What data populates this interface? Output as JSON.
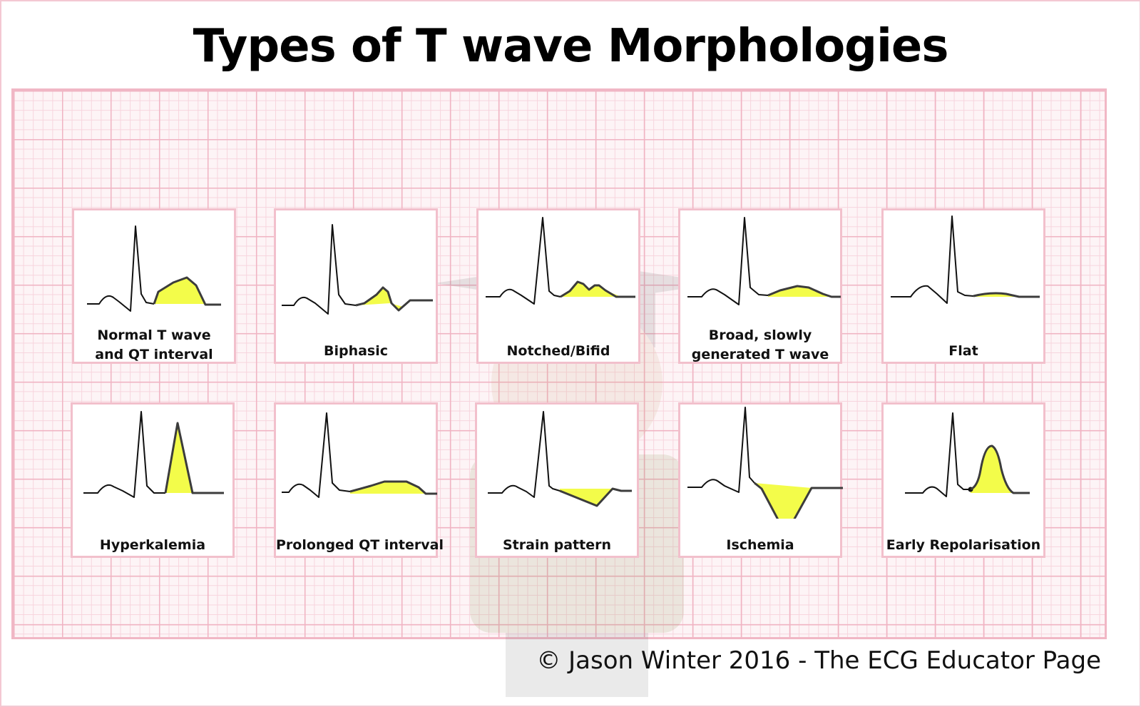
{
  "title": "Types of T wave Morphologies",
  "panels": [
    {
      "label": "Normal T wave\nand QT interval"
    },
    {
      "label": "Biphasic"
    },
    {
      "label": "Notched/Bifid"
    },
    {
      "label": "Broad, slowly\ngenerated T wave"
    },
    {
      "label": "Flat"
    },
    {
      "label": "Hyperkalemia"
    },
    {
      "label": "Prolonged QT interval"
    },
    {
      "label": "Strain pattern"
    },
    {
      "label": "Ischemia"
    },
    {
      "label": "Early Repolarisation"
    }
  ],
  "footer": {
    "copyright": "© Jason Winter 2016 - The ECG Educator Page"
  },
  "colors": {
    "highlight": "#f3fc4a",
    "grid": "#f0b4c3",
    "trace": "#111111",
    "twave_outline": "#3c3c3c"
  }
}
